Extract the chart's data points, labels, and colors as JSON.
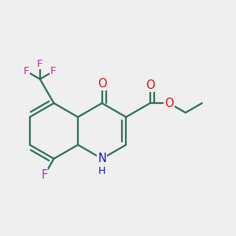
{
  "bg_color": "#efefef",
  "bond_color": "#2d6e5a",
  "bond_width": 1.6,
  "dbo": 0.055,
  "atom_colors": {
    "O": "#dd1111",
    "N": "#1111cc",
    "F": "#cc22aa",
    "C": "#2d6e5a"
  },
  "font_size": 10.5,
  "fig_size": [
    3.0,
    3.0
  ],
  "dpi": 100
}
